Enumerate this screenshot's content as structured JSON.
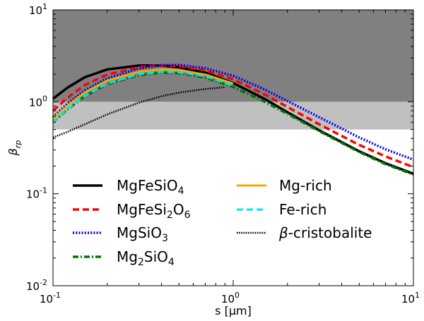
{
  "chart_data": {
    "type": "line",
    "title": "",
    "xlabel": "s [μm]",
    "ylabel": "β_rp",
    "xscale": "log",
    "yscale": "log",
    "xlim": [
      0.1,
      10
    ],
    "ylim": [
      0.01,
      10
    ],
    "x_ticks": [
      {
        "value": 0.1,
        "base": "10",
        "exp": "-1"
      },
      {
        "value": 1,
        "base": "10",
        "exp": "0"
      },
      {
        "value": 10,
        "base": "10",
        "exp": "1"
      }
    ],
    "y_ticks": [
      {
        "value": 0.01,
        "base": "10",
        "exp": "-2"
      },
      {
        "value": 0.1,
        "base": "10",
        "exp": "-1"
      },
      {
        "value": 1,
        "base": "10",
        "exp": "0"
      },
      {
        "value": 10,
        "base": "10",
        "exp": "1"
      }
    ],
    "shaded_regions": [
      {
        "name": "beta-above-1",
        "y_range": [
          1,
          10
        ],
        "color": "#808080"
      },
      {
        "name": "beta-0.5-to-1",
        "y_range": [
          0.5,
          1
        ],
        "color": "#c0c0c0"
      }
    ],
    "legend_position": "lower-left",
    "series": [
      {
        "name": "MgFeSiO4",
        "label_main": "MgFeSiO",
        "label_sub": "4",
        "label_tail": "",
        "color": "#000000",
        "style": "solid",
        "width": 3.5,
        "points": [
          [
            0.1,
            1.08
          ],
          [
            0.12,
            1.42
          ],
          [
            0.15,
            1.85
          ],
          [
            0.2,
            2.25
          ],
          [
            0.3,
            2.48
          ],
          [
            0.4,
            2.48
          ],
          [
            0.5,
            2.38
          ],
          [
            0.7,
            2.08
          ],
          [
            1.0,
            1.6
          ],
          [
            1.5,
            1.07
          ],
          [
            2.0,
            0.77
          ],
          [
            3.0,
            0.49
          ],
          [
            5.0,
            0.29
          ],
          [
            7.0,
            0.215
          ],
          [
            10,
            0.165
          ]
        ]
      },
      {
        "name": "MgFeSi2O6",
        "label_main": "MgFeSi",
        "label_sub": "2",
        "label_tail": "O",
        "label_sub2": "6",
        "color": "#ff0000",
        "style": "dashed",
        "width": 3.5,
        "points": [
          [
            0.1,
            0.8
          ],
          [
            0.12,
            1.1
          ],
          [
            0.15,
            1.52
          ],
          [
            0.2,
            1.98
          ],
          [
            0.3,
            2.38
          ],
          [
            0.4,
            2.5
          ],
          [
            0.5,
            2.45
          ],
          [
            0.7,
            2.2
          ],
          [
            1.0,
            1.76
          ],
          [
            1.5,
            1.2
          ],
          [
            2.0,
            0.88
          ],
          [
            3.0,
            0.57
          ],
          [
            5.0,
            0.34
          ],
          [
            7.0,
            0.255
          ],
          [
            10,
            0.195
          ]
        ]
      },
      {
        "name": "MgSiO3",
        "label_main": "MgSiO",
        "label_sub": "3",
        "label_tail": "",
        "color": "#0000ee",
        "style": "dotted",
        "width": 3.5,
        "points": [
          [
            0.1,
            0.68
          ],
          [
            0.12,
            0.95
          ],
          [
            0.15,
            1.33
          ],
          [
            0.2,
            1.8
          ],
          [
            0.3,
            2.3
          ],
          [
            0.4,
            2.5
          ],
          [
            0.5,
            2.52
          ],
          [
            0.7,
            2.32
          ],
          [
            1.0,
            1.92
          ],
          [
            1.5,
            1.36
          ],
          [
            2.0,
            1.02
          ],
          [
            3.0,
            0.68
          ],
          [
            5.0,
            0.41
          ],
          [
            7.0,
            0.305
          ],
          [
            10,
            0.235
          ]
        ]
      },
      {
        "name": "Mg2SiO4",
        "label_main": "Mg",
        "label_sub": "2",
        "label_tail": "SiO",
        "label_sub2": "4",
        "color": "#007700",
        "style": "dashdot",
        "width": 3.5,
        "points": [
          [
            0.1,
            0.6
          ],
          [
            0.12,
            0.82
          ],
          [
            0.15,
            1.15
          ],
          [
            0.2,
            1.55
          ],
          [
            0.3,
            1.95
          ],
          [
            0.4,
            2.08
          ],
          [
            0.5,
            2.05
          ],
          [
            0.7,
            1.83
          ],
          [
            1.0,
            1.45
          ],
          [
            1.5,
            1.0
          ],
          [
            2.0,
            0.74
          ],
          [
            3.0,
            0.48
          ],
          [
            5.0,
            0.285
          ],
          [
            7.0,
            0.21
          ],
          [
            10,
            0.162
          ]
        ]
      },
      {
        "name": "Mg-rich",
        "label_main": "Mg-rich",
        "label_sub": "",
        "label_tail": "",
        "color": "#ffa500",
        "style": "solid",
        "width": 3,
        "points": [
          [
            0.1,
            0.65
          ],
          [
            0.12,
            0.9
          ],
          [
            0.15,
            1.26
          ],
          [
            0.2,
            1.7
          ],
          [
            0.3,
            2.12
          ],
          [
            0.4,
            2.25
          ],
          [
            0.5,
            2.2
          ],
          [
            0.7,
            1.98
          ],
          [
            1.0,
            1.58
          ]
        ]
      },
      {
        "name": "Fe-rich",
        "label_main": "Fe-rich",
        "label_sub": "",
        "label_tail": "",
        "color": "#00e5ee",
        "style": "dashed",
        "width": 3,
        "points": [
          [
            0.1,
            0.6
          ],
          [
            0.12,
            0.83
          ],
          [
            0.15,
            1.16
          ],
          [
            0.2,
            1.58
          ],
          [
            0.3,
            2.0
          ],
          [
            0.4,
            2.12
          ],
          [
            0.5,
            2.1
          ],
          [
            0.7,
            1.9
          ],
          [
            1.0,
            1.5
          ]
        ]
      },
      {
        "name": "beta-cristobalite",
        "label_main": "-cristobalite",
        "label_prefix": "β",
        "label_sub": "",
        "label_tail": "",
        "color": "#000000",
        "style": "densedot",
        "width": 2.5,
        "points": [
          [
            0.1,
            0.41
          ],
          [
            0.12,
            0.47
          ],
          [
            0.15,
            0.57
          ],
          [
            0.2,
            0.73
          ],
          [
            0.3,
            0.98
          ],
          [
            0.4,
            1.15
          ],
          [
            0.5,
            1.26
          ],
          [
            0.7,
            1.38
          ],
          [
            0.9,
            1.44
          ]
        ]
      }
    ]
  }
}
